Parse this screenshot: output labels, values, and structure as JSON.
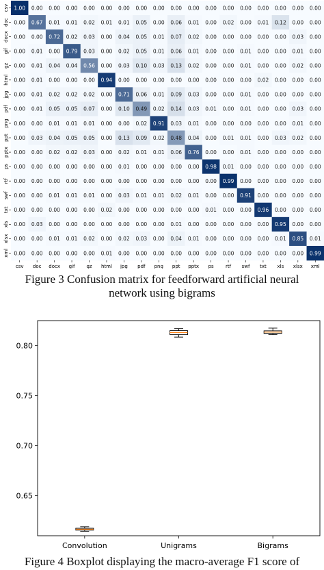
{
  "captions": {
    "figure3_line1": "Figure 3 Confusion matrix for feedforward artificial neural",
    "figure3_line2": "network using bigrams",
    "figure4_line1": "Figure 4 Boxplot displaying the macro-average F1 score of"
  },
  "colors": {
    "heat_low": "#f7fbff",
    "heat_high": "#08306b",
    "box_edge": "#000000",
    "box_fill": "#ffffff",
    "median_line": "#ff7f0e"
  },
  "chart_data": [
    {
      "type": "heatmap",
      "title": "",
      "xlabel": "",
      "ylabel": "",
      "labels": [
        "csv",
        "doc",
        "docx",
        "gif",
        "gz",
        "html",
        "jpg",
        "pdf",
        "png",
        "ppt",
        "pptx",
        "ps",
        "rtf",
        "swf",
        "txt",
        "xls",
        "xlsx",
        "xml"
      ],
      "matrix": [
        [
          "1.00",
          "0.00",
          "0.00",
          "0.00",
          "0.00",
          "0.00",
          "0.00",
          "0.00",
          "0.00",
          "0.00",
          "0.00",
          "0.00",
          "0.00",
          "0.00",
          "0.00",
          "0.00",
          "0.00",
          "0.00"
        ],
        [
          "0.00",
          "0.67",
          "0.01",
          "0.01",
          "0.02",
          "0.01",
          "0.01",
          "0.05",
          "0.00",
          "0.06",
          "0.01",
          "0.00",
          "0.02",
          "0.00",
          "0.01",
          "0.12",
          "0.00",
          "0.00"
        ],
        [
          "0.00",
          "0.00",
          "0.72",
          "0.02",
          "0.03",
          "0.00",
          "0.04",
          "0.05",
          "0.01",
          "0.07",
          "0.02",
          "0.00",
          "0.00",
          "0.00",
          "0.00",
          "0.00",
          "0.03",
          "0.00"
        ],
        [
          "0.00",
          "0.01",
          "0.00",
          "0.79",
          "0.03",
          "0.00",
          "0.02",
          "0.05",
          "0.01",
          "0.06",
          "0.01",
          "0.00",
          "0.00",
          "0.01",
          "0.00",
          "0.00",
          "0.01",
          "0.00"
        ],
        [
          "0.00",
          "0.01",
          "0.04",
          "0.04",
          "0.56",
          "0.00",
          "0.03",
          "0.10",
          "0.03",
          "0.13",
          "0.02",
          "0.00",
          "0.00",
          "0.01",
          "0.00",
          "0.00",
          "0.02",
          "0.00"
        ],
        [
          "0.00",
          "0.01",
          "0.00",
          "0.00",
          "0.00",
          "0.94",
          "0.00",
          "0.00",
          "0.00",
          "0.00",
          "0.00",
          "0.00",
          "0.00",
          "0.00",
          "0.02",
          "0.00",
          "0.00",
          "0.00"
        ],
        [
          "0.00",
          "0.01",
          "0.02",
          "0.02",
          "0.02",
          "0.00",
          "0.71",
          "0.06",
          "0.01",
          "0.09",
          "0.03",
          "0.00",
          "0.00",
          "0.01",
          "0.00",
          "0.00",
          "0.00",
          "0.00"
        ],
        [
          "0.00",
          "0.01",
          "0.05",
          "0.05",
          "0.07",
          "0.00",
          "0.10",
          "0.49",
          "0.02",
          "0.14",
          "0.03",
          "0.01",
          "0.00",
          "0.01",
          "0.00",
          "0.00",
          "0.03",
          "0.00"
        ],
        [
          "0.00",
          "0.00",
          "0.01",
          "0.01",
          "0.01",
          "0.00",
          "0.00",
          "0.02",
          "0.91",
          "0.03",
          "0.01",
          "0.00",
          "0.00",
          "0.00",
          "0.00",
          "0.00",
          "0.01",
          "0.00"
        ],
        [
          "0.00",
          "0.03",
          "0.04",
          "0.05",
          "0.05",
          "0.00",
          "0.13",
          "0.09",
          "0.02",
          "0.48",
          "0.04",
          "0.00",
          "0.01",
          "0.01",
          "0.00",
          "0.03",
          "0.02",
          "0.00"
        ],
        [
          "0.00",
          "0.00",
          "0.02",
          "0.02",
          "0.03",
          "0.00",
          "0.02",
          "0.01",
          "0.01",
          "0.06",
          "0.76",
          "0.00",
          "0.00",
          "0.01",
          "0.00",
          "0.00",
          "0.00",
          "0.00"
        ],
        [
          "0.00",
          "0.00",
          "0.00",
          "0.00",
          "0.00",
          "0.00",
          "0.01",
          "0.00",
          "0.00",
          "0.00",
          "0.00",
          "0.98",
          "0.01",
          "0.00",
          "0.00",
          "0.00",
          "0.00",
          "0.00"
        ],
        [
          "0.00",
          "0.00",
          "0.00",
          "0.00",
          "0.00",
          "0.00",
          "0.00",
          "0.00",
          "0.00",
          "0.00",
          "0.00",
          "0.00",
          "0.99",
          "0.00",
          "0.00",
          "0.00",
          "0.00",
          "0.00"
        ],
        [
          "0.00",
          "0.00",
          "0.01",
          "0.01",
          "0.01",
          "0.00",
          "0.03",
          "0.01",
          "0.01",
          "0.02",
          "0.01",
          "0.00",
          "0.00",
          "0.91",
          "0.00",
          "0.00",
          "0.00",
          "0.00"
        ],
        [
          "0.00",
          "0.00",
          "0.00",
          "0.00",
          "0.00",
          "0.02",
          "0.00",
          "0.00",
          "0.00",
          "0.00",
          "0.00",
          "0.01",
          "0.00",
          "0.00",
          "0.96",
          "0.00",
          "0.00",
          "0.00"
        ],
        [
          "0.00",
          "0.03",
          "0.00",
          "0.00",
          "0.00",
          "0.00",
          "0.00",
          "0.00",
          "0.00",
          "0.01",
          "0.00",
          "0.00",
          "0.00",
          "0.00",
          "0.00",
          "0.95",
          "0.00",
          "0.00"
        ],
        [
          "0.00",
          "0.00",
          "0.01",
          "0.01",
          "0.02",
          "0.00",
          "0.02",
          "0.03",
          "0.00",
          "0.04",
          "0.01",
          "0.00",
          "0.00",
          "0.00",
          "0.00",
          "0.01",
          "0.85",
          "0.01"
        ],
        [
          "0.00",
          "0.00",
          "0.00",
          "0.00",
          "0.00",
          "0.01",
          "0.00",
          "0.00",
          "0.00",
          "0.00",
          "0.00",
          "0.00",
          "0.00",
          "0.00",
          "0.00",
          "0.00",
          "0.00",
          "0.99"
        ]
      ]
    },
    {
      "type": "boxplot",
      "title": "",
      "xlabel": "",
      "ylabel": "",
      "categories": [
        "Convolution",
        "Unigrams",
        "Bigrams"
      ],
      "ylim": [
        0.61,
        0.825
      ],
      "yticks": [
        "0.65",
        "0.70",
        "0.75",
        "0.80"
      ],
      "grid": false,
      "boxes": [
        {
          "whisker_low": 0.6145,
          "q1": 0.6156,
          "median": 0.6165,
          "q3": 0.6175,
          "whisker_high": 0.619
        },
        {
          "whisker_low": 0.8085,
          "q1": 0.811,
          "median": 0.813,
          "q3": 0.815,
          "whisker_high": 0.817
        },
        {
          "whisker_low": 0.811,
          "q1": 0.8122,
          "median": 0.8135,
          "q3": 0.8148,
          "whisker_high": 0.8175
        }
      ]
    }
  ]
}
